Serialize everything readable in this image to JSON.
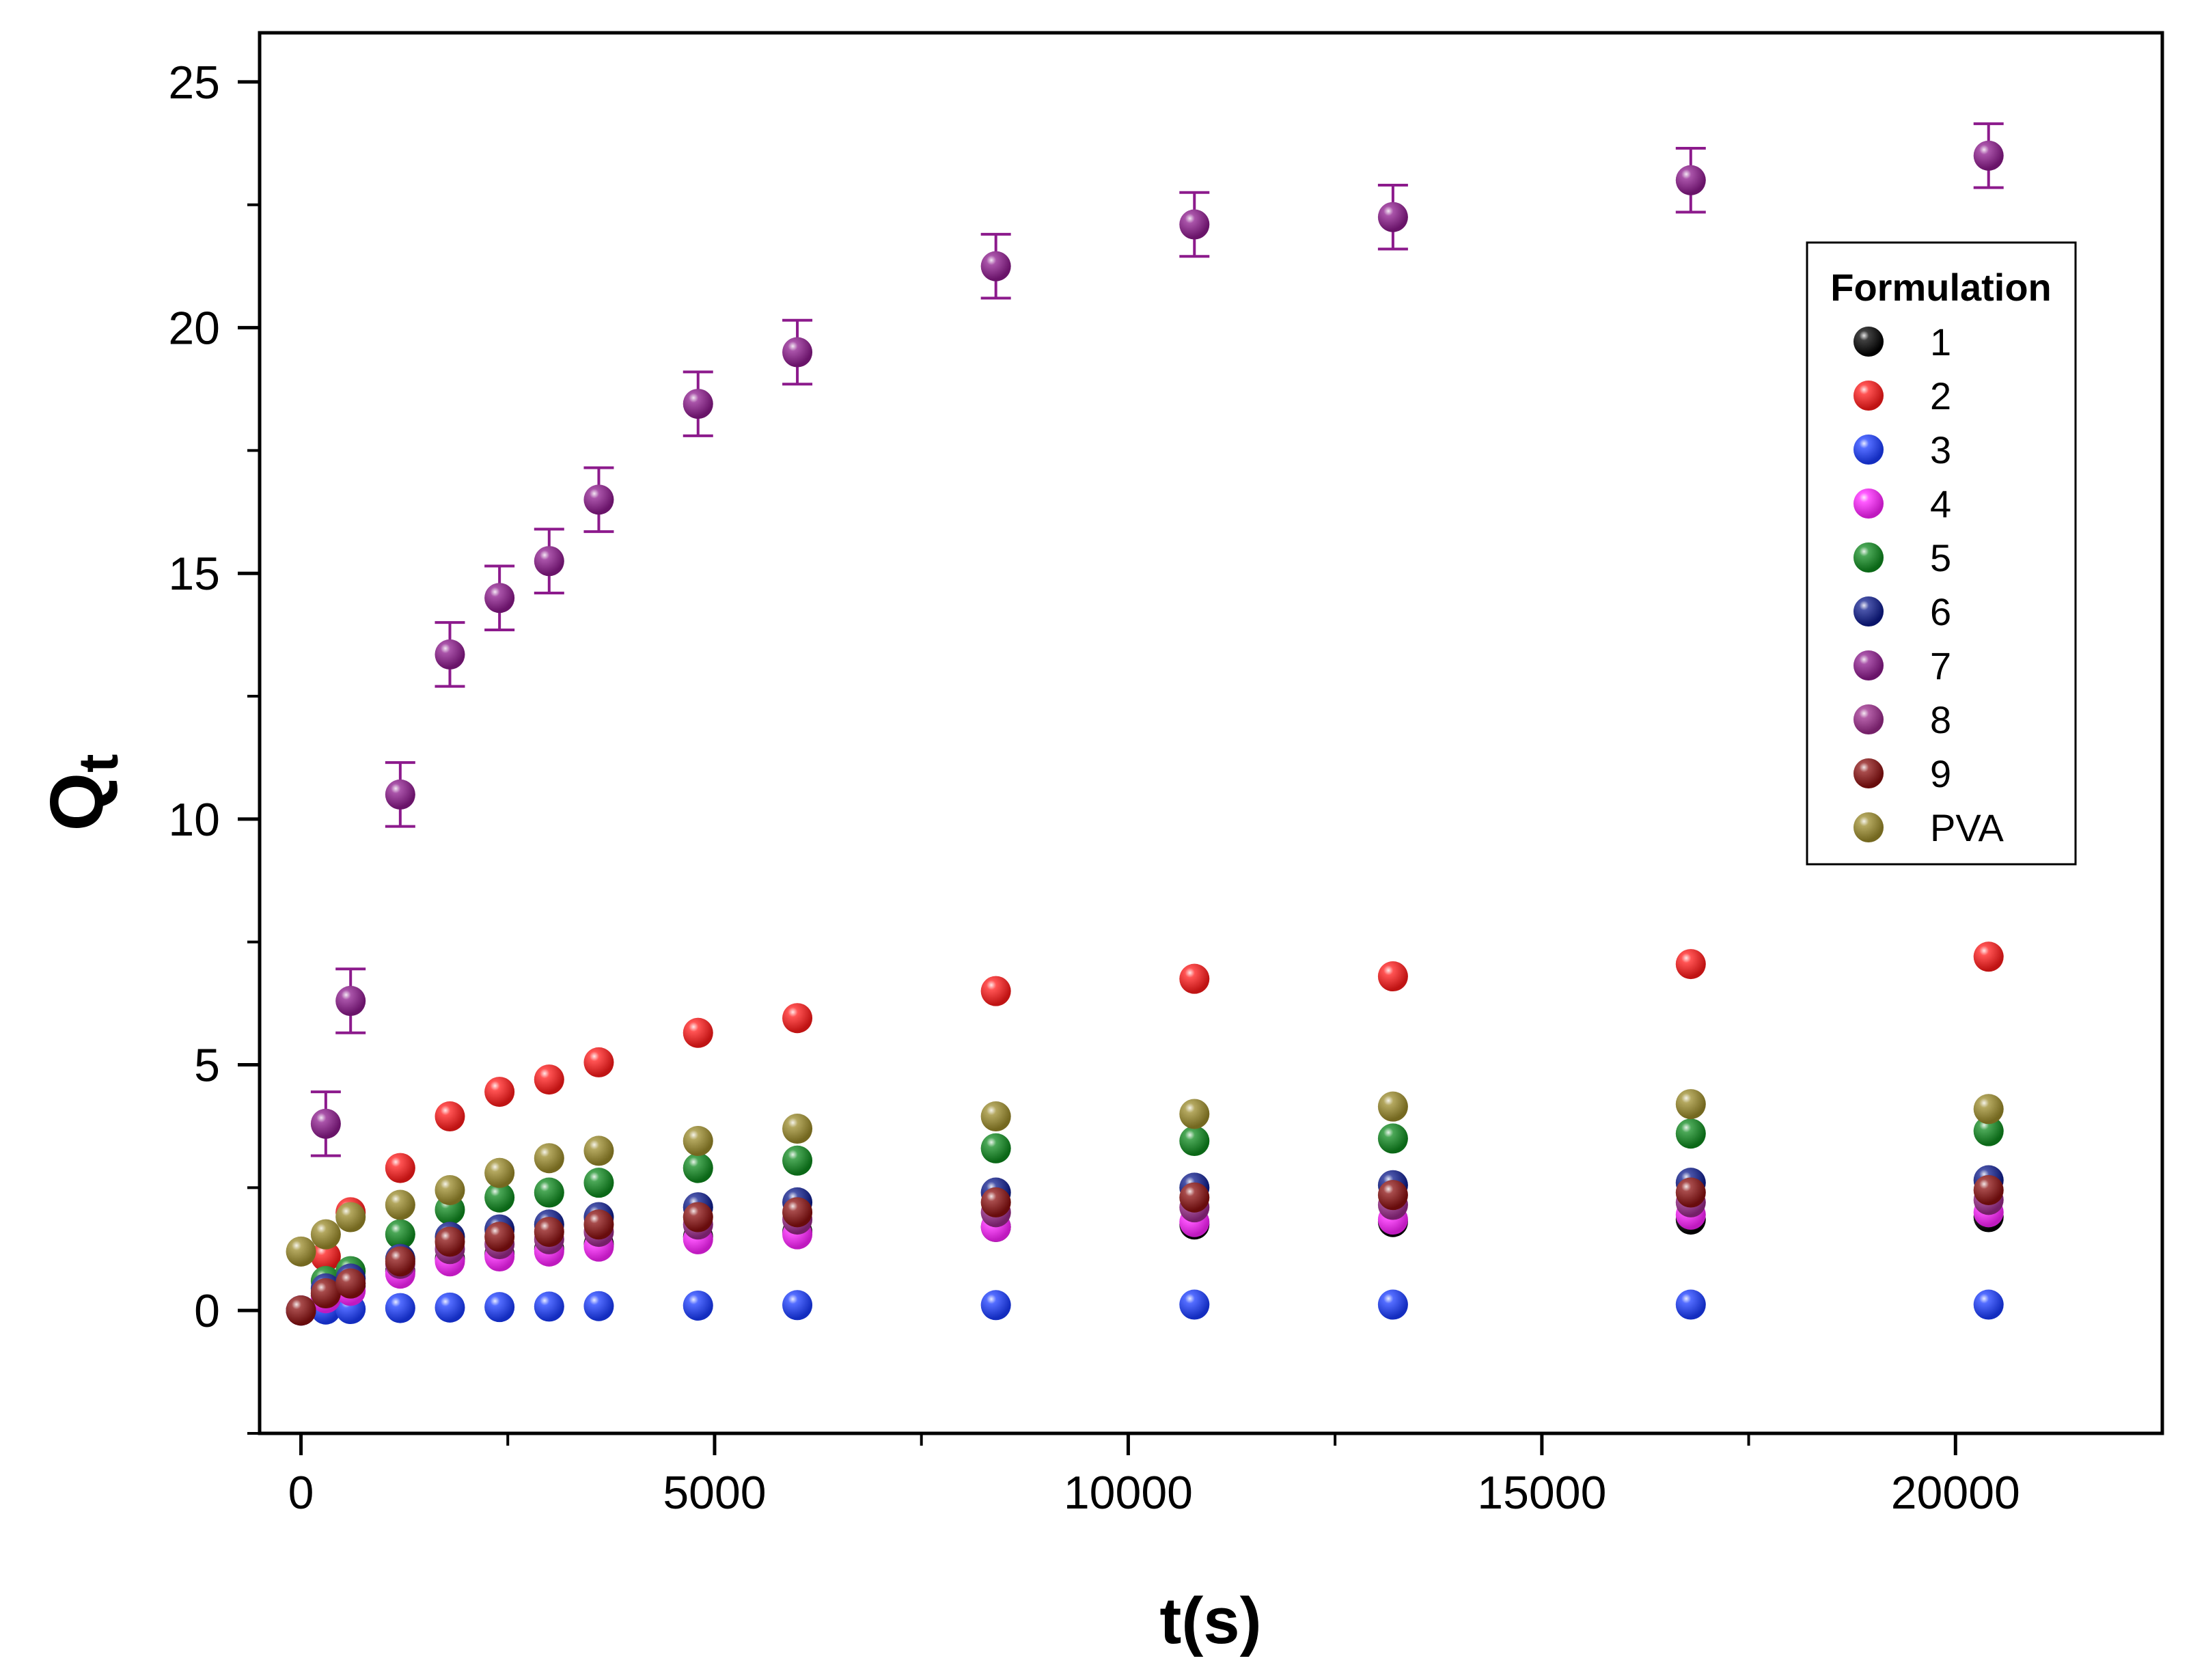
{
  "chart_data": {
    "type": "scatter",
    "title": "",
    "xlabel": "t(s)",
    "ylabel_main": "Q",
    "ylabel_sub": "t",
    "xlim": [
      -500,
      22500
    ],
    "ylim": [
      -2.5,
      26
    ],
    "xticks": [
      0,
      5000,
      10000,
      15000,
      20000
    ],
    "xtick_labels": [
      "0",
      "5000",
      "10000",
      "15000",
      "20000"
    ],
    "yticks": [
      0,
      5,
      10,
      15,
      20,
      25
    ],
    "ytick_labels": [
      "0",
      "5",
      "10",
      "15",
      "20",
      "25"
    ],
    "legend": {
      "title": "Formulation",
      "position": "right"
    },
    "x": [
      0,
      300,
      600,
      1200,
      1800,
      2400,
      3000,
      3600,
      4800,
      6000,
      8400,
      10800,
      13200,
      16800,
      20400
    ],
    "series": [
      {
        "name": "1",
        "color": "#000000",
        "values": [
          0,
          0.3,
          0.5,
          0.8,
          1.05,
          1.15,
          1.25,
          1.35,
          1.5,
          1.6,
          1.7,
          1.75,
          1.8,
          1.85,
          1.9
        ]
      },
      {
        "name": "2",
        "color": "#ff1a1a",
        "values": [
          0,
          1.1,
          2.0,
          2.9,
          3.95,
          4.45,
          4.7,
          5.05,
          5.65,
          5.95,
          6.5,
          6.75,
          6.8,
          7.05,
          7.2
        ]
      },
      {
        "name": "3",
        "color": "#1a3cff",
        "values": [
          0,
          0.02,
          0.03,
          0.05,
          0.06,
          0.07,
          0.08,
          0.09,
          0.1,
          0.11,
          0.11,
          0.12,
          0.12,
          0.12,
          0.12
        ]
      },
      {
        "name": "4",
        "color": "#ff22ff",
        "values": [
          0,
          0.25,
          0.4,
          0.75,
          1.0,
          1.1,
          1.2,
          1.3,
          1.45,
          1.55,
          1.7,
          1.8,
          1.85,
          1.95,
          2.0
        ]
      },
      {
        "name": "5",
        "color": "#0f8a1f",
        "values": [
          0,
          0.6,
          0.8,
          1.55,
          2.05,
          2.3,
          2.4,
          2.6,
          2.9,
          3.05,
          3.3,
          3.45,
          3.5,
          3.6,
          3.65
        ]
      },
      {
        "name": "6",
        "color": "#0d1b8c",
        "values": [
          0,
          0.45,
          0.65,
          1.05,
          1.5,
          1.65,
          1.75,
          1.9,
          2.1,
          2.2,
          2.4,
          2.5,
          2.55,
          2.6,
          2.65
        ]
      },
      {
        "name": "7",
        "color": "#8c1a8c",
        "values": [
          0,
          3.8,
          6.3,
          10.5,
          13.35,
          14.5,
          15.25,
          16.5,
          18.45,
          19.5,
          21.25,
          22.1,
          22.25,
          23.0,
          23.5
        ],
        "error": 0.65
      },
      {
        "name": "8",
        "color": "#9a2a8a",
        "values": [
          0,
          0.35,
          0.55,
          0.95,
          1.25,
          1.35,
          1.45,
          1.6,
          1.75,
          1.85,
          2.0,
          2.1,
          2.15,
          2.2,
          2.25
        ]
      },
      {
        "name": "9",
        "color": "#8a1010",
        "values": [
          0,
          0.35,
          0.55,
          1.0,
          1.4,
          1.5,
          1.6,
          1.75,
          1.9,
          2.0,
          2.2,
          2.3,
          2.35,
          2.4,
          2.45
        ]
      },
      {
        "name": "PVA",
        "color": "#9a8a2a",
        "values": [
          1.2,
          1.55,
          1.9,
          2.15,
          2.45,
          2.8,
          3.1,
          3.25,
          3.45,
          3.7,
          3.95,
          4.0,
          4.15,
          4.2,
          4.1
        ]
      }
    ]
  }
}
